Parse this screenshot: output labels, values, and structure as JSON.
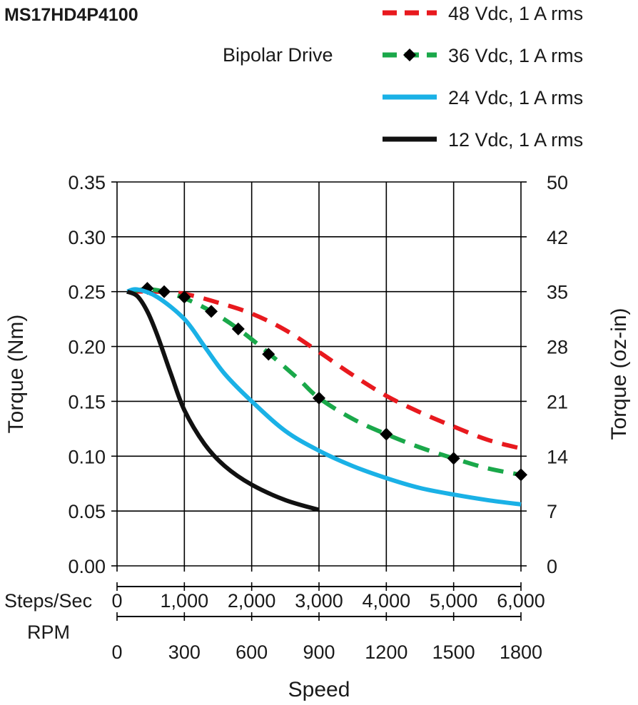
{
  "chart_data": {
    "type": "line",
    "title": "MS17HD4P4100",
    "subtitle": "Bipolar Drive",
    "xlabel": "Speed",
    "ylabel": "Torque (Nm)",
    "y2label": "Torque (oz-in)",
    "x_axis_names": {
      "steps": "Steps/Sec",
      "rpm": "RPM"
    },
    "xlim": [
      0,
      6000
    ],
    "ylim": [
      0,
      0.35
    ],
    "y2lim": [
      0,
      50
    ],
    "grid": true,
    "legend_position": "top-right",
    "x_ticks_steps": [
      "0",
      "1,000",
      "2,000",
      "3,000",
      "4,000",
      "5,000",
      "6,000"
    ],
    "x_ticks_rpm": [
      "0",
      "300",
      "600",
      "900",
      "1200",
      "1500",
      "1800"
    ],
    "y_ticks": [
      "0.00",
      "0.05",
      "0.10",
      "0.15",
      "0.20",
      "0.25",
      "0.30",
      "0.35"
    ],
    "y2_ticks": [
      "0",
      "7",
      "14",
      "21",
      "28",
      "35",
      "42",
      "50"
    ],
    "series": [
      {
        "name": "48 Vdc, 1 A rms",
        "color": "#e8191e",
        "style": "dashed",
        "x": [
          150,
          600,
          1000,
          1500,
          2000,
          2500,
          3000,
          3500,
          4000,
          4500,
          5000,
          5500,
          6000
        ],
        "y": [
          0.25,
          0.25,
          0.248,
          0.24,
          0.23,
          0.215,
          0.195,
          0.174,
          0.155,
          0.14,
          0.127,
          0.115,
          0.107
        ]
      },
      {
        "name": "36 Vdc, 1 A rms",
        "color": "#1aa84a",
        "style": "dashed-diamond",
        "x": [
          150,
          450,
          700,
          1000,
          1400,
          1800,
          2250,
          2700,
          3000,
          3500,
          4000,
          4500,
          5000,
          5500,
          6000
        ],
        "y": [
          0.25,
          0.252,
          0.25,
          0.244,
          0.232,
          0.216,
          0.194,
          0.17,
          0.153,
          0.134,
          0.12,
          0.108,
          0.098,
          0.089,
          0.083
        ],
        "markers": [
          {
            "x": 450,
            "y": 0.253
          },
          {
            "x": 700,
            "y": 0.25
          },
          {
            "x": 1000,
            "y": 0.245
          },
          {
            "x": 1400,
            "y": 0.232
          },
          {
            "x": 1800,
            "y": 0.216
          },
          {
            "x": 2250,
            "y": 0.193
          },
          {
            "x": 3000,
            "y": 0.153
          },
          {
            "x": 4000,
            "y": 0.12
          },
          {
            "x": 5000,
            "y": 0.098
          },
          {
            "x": 6000,
            "y": 0.083
          }
        ]
      },
      {
        "name": "24 Vdc, 1 A rms",
        "color": "#1ab1e6",
        "style": "solid",
        "x": [
          150,
          300,
          600,
          1000,
          1300,
          1600,
          2000,
          2500,
          3000,
          3500,
          4000,
          4500,
          5000,
          5500,
          6000
        ],
        "y": [
          0.25,
          0.252,
          0.245,
          0.225,
          0.2,
          0.175,
          0.15,
          0.123,
          0.105,
          0.091,
          0.08,
          0.071,
          0.065,
          0.06,
          0.056
        ]
      },
      {
        "name": "12 Vdc, 1 A rms",
        "color": "#111111",
        "style": "solid",
        "x": [
          150,
          300,
          450,
          600,
          800,
          1000,
          1300,
          1600,
          2000,
          2500,
          3000
        ],
        "y": [
          0.25,
          0.246,
          0.232,
          0.21,
          0.175,
          0.142,
          0.111,
          0.091,
          0.074,
          0.06,
          0.051
        ]
      }
    ]
  }
}
